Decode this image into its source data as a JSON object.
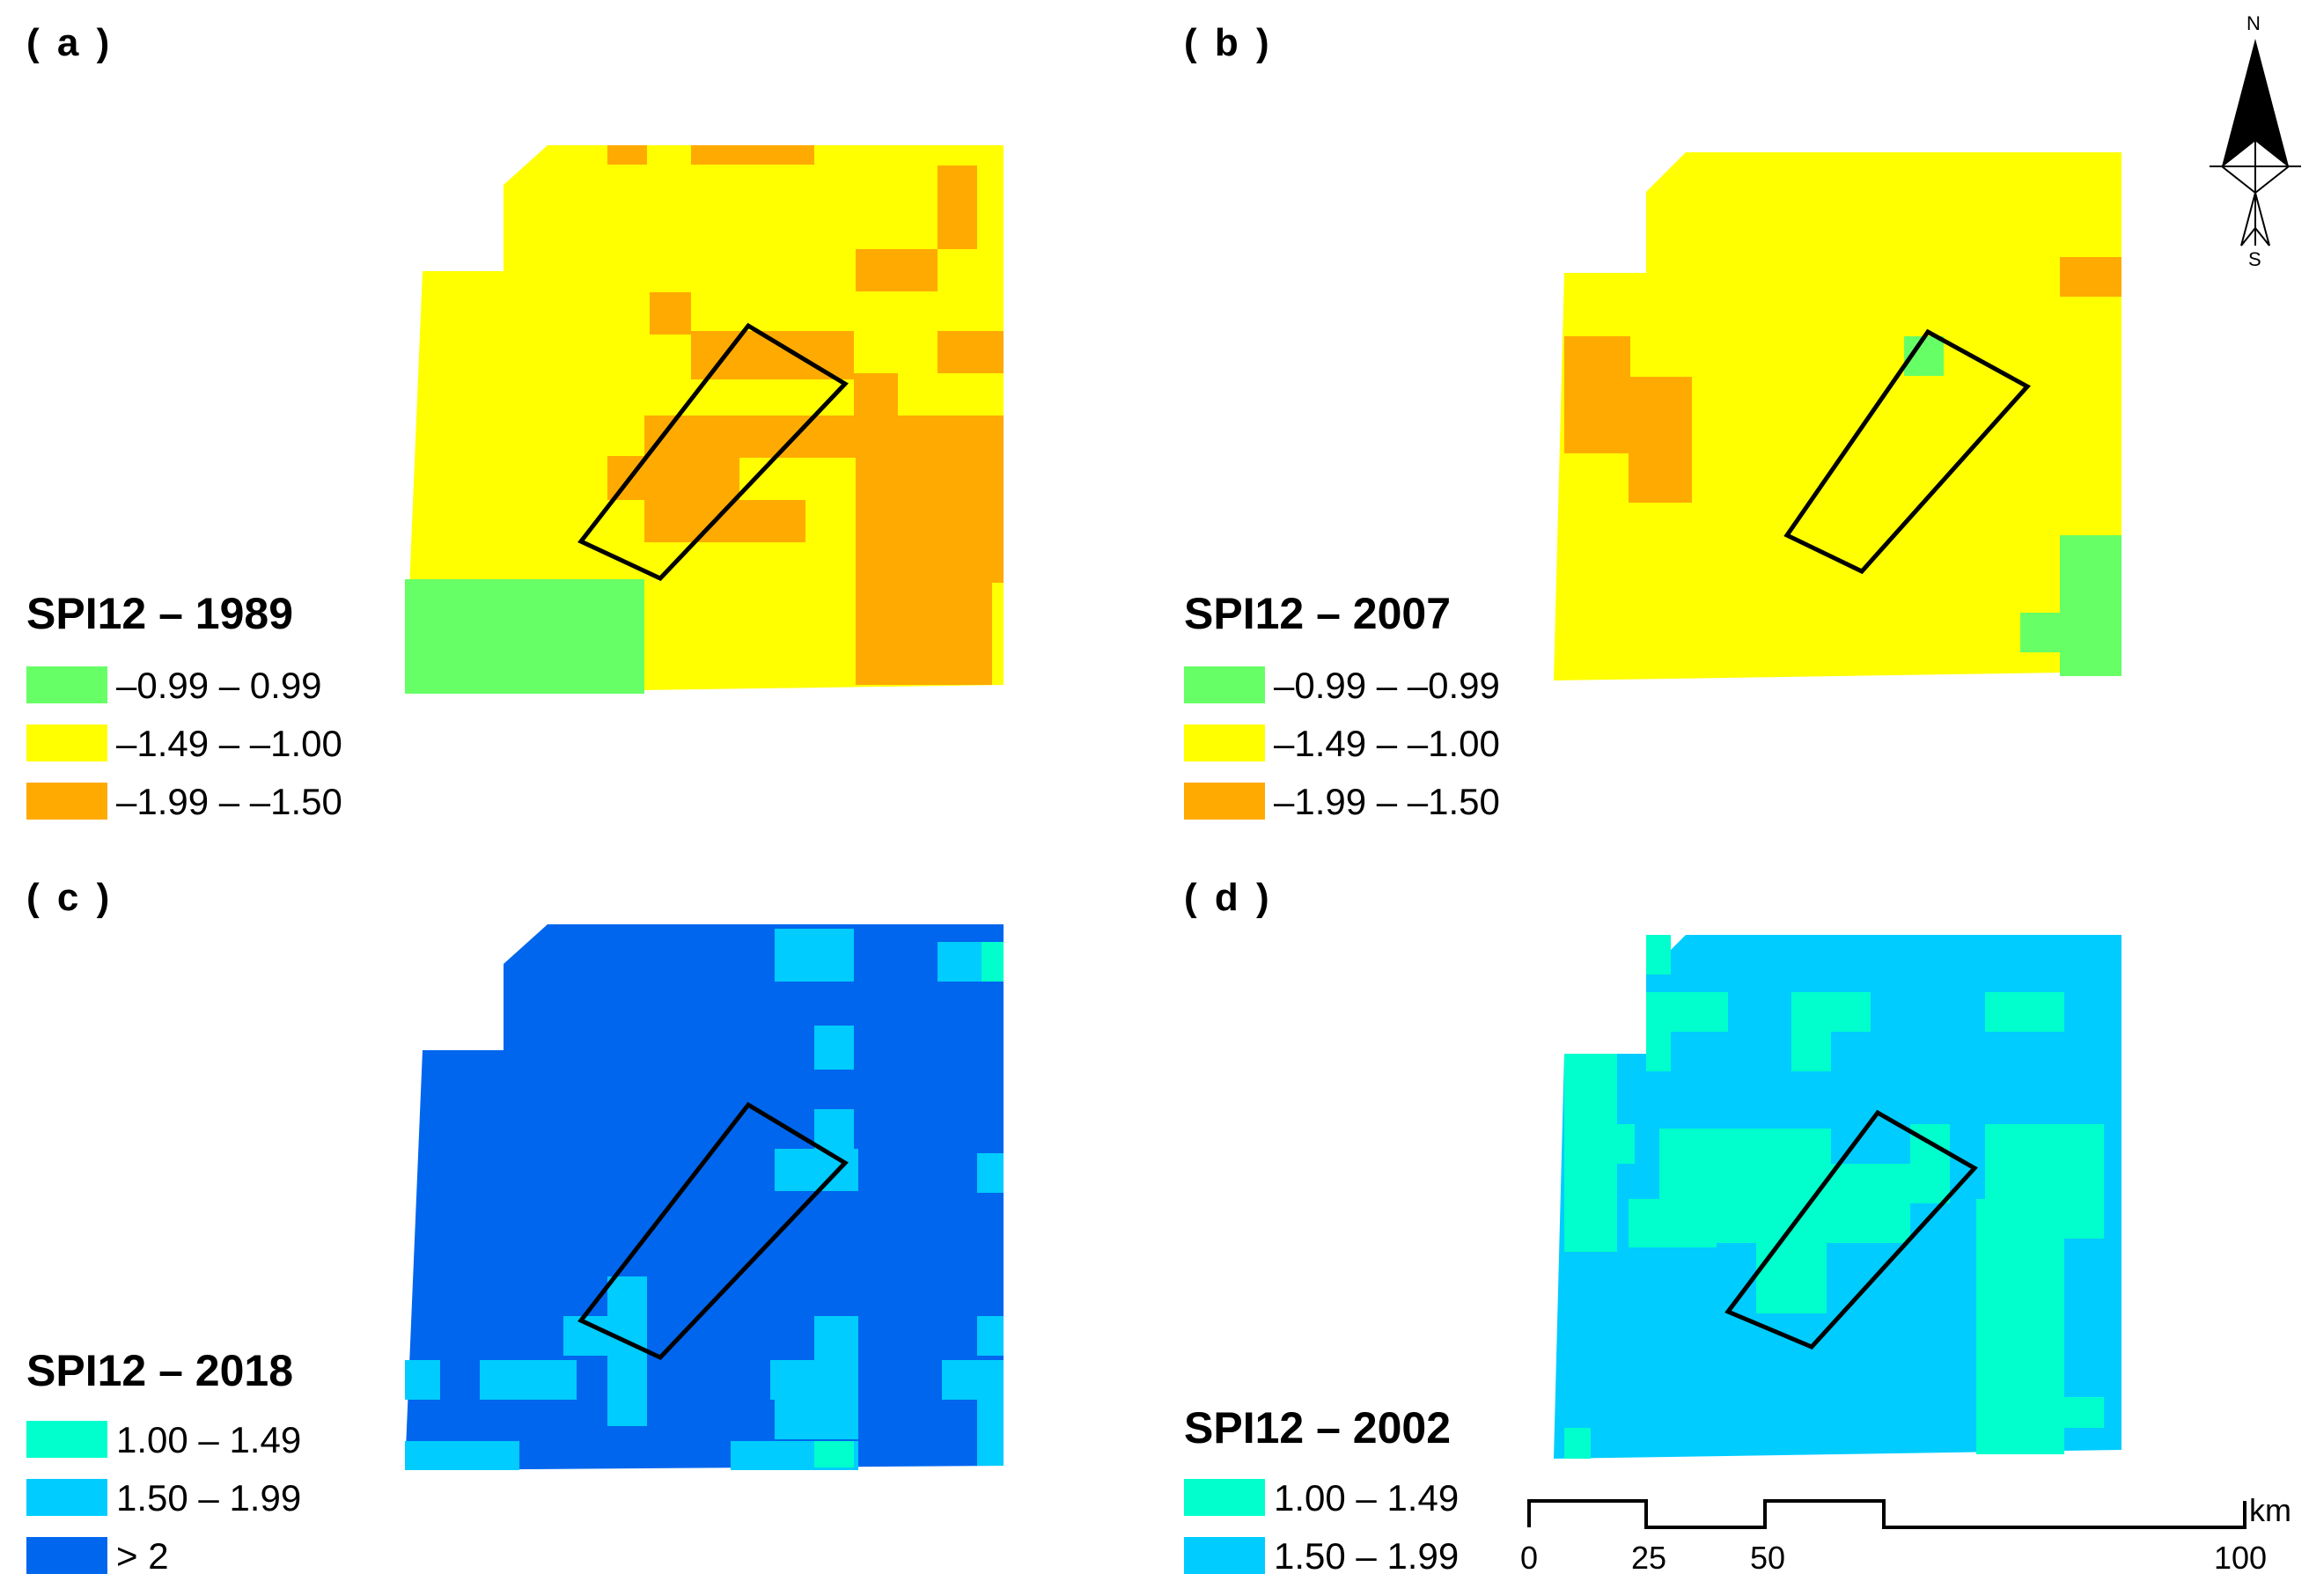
{
  "colors": {
    "green": "#66ff66",
    "yellow": "#ffff00",
    "orange": "#ffaa00",
    "aqua": "#00ffcc",
    "sky": "#00ccff",
    "blue": "#0066ee",
    "outline": "#000000"
  },
  "panels": [
    {
      "id": "a",
      "label": "( a )",
      "legend_title": "SPI12 – 1989",
      "legend": [
        {
          "color": "#66ff66",
          "text": "–0.99 – 0.99"
        },
        {
          "color": "#ffff00",
          "text": "–1.49 – –1.00"
        },
        {
          "color": "#ffaa00",
          "text": "–1.99 – –1.50"
        }
      ],
      "base_color": "#ffff00"
    },
    {
      "id": "b",
      "label": "( b )",
      "legend_title": "SPI12 – 2007",
      "legend": [
        {
          "color": "#66ff66",
          "text": "–0.99 – –0.99"
        },
        {
          "color": "#ffff00",
          "text": "–1.49 – –1.00"
        },
        {
          "color": "#ffaa00",
          "text": "–1.99 – –1.50"
        }
      ],
      "base_color": "#ffff00"
    },
    {
      "id": "c",
      "label": "( c )",
      "legend_title": "SPI12 – 2018",
      "legend": [
        {
          "color": "#00ffcc",
          "text": "1.00 – 1.49"
        },
        {
          "color": "#00ccff",
          "text": "1.50 – 1.99"
        },
        {
          "color": "#0066ee",
          "text": "> 2"
        }
      ],
      "base_color": "#0066ee"
    },
    {
      "id": "d",
      "label": "( d )",
      "legend_title": "SPI12 – 2002",
      "legend": [
        {
          "color": "#00ffcc",
          "text": "1.00 – 1.49"
        },
        {
          "color": "#00ccff",
          "text": "1.50 – 1.99"
        }
      ],
      "base_color": "#00ccff"
    }
  ],
  "north_arrow": {
    "north": "N",
    "south": "S"
  },
  "scale_bar": {
    "ticks": [
      "0",
      "25",
      "50",
      "100"
    ],
    "unit": "km"
  }
}
